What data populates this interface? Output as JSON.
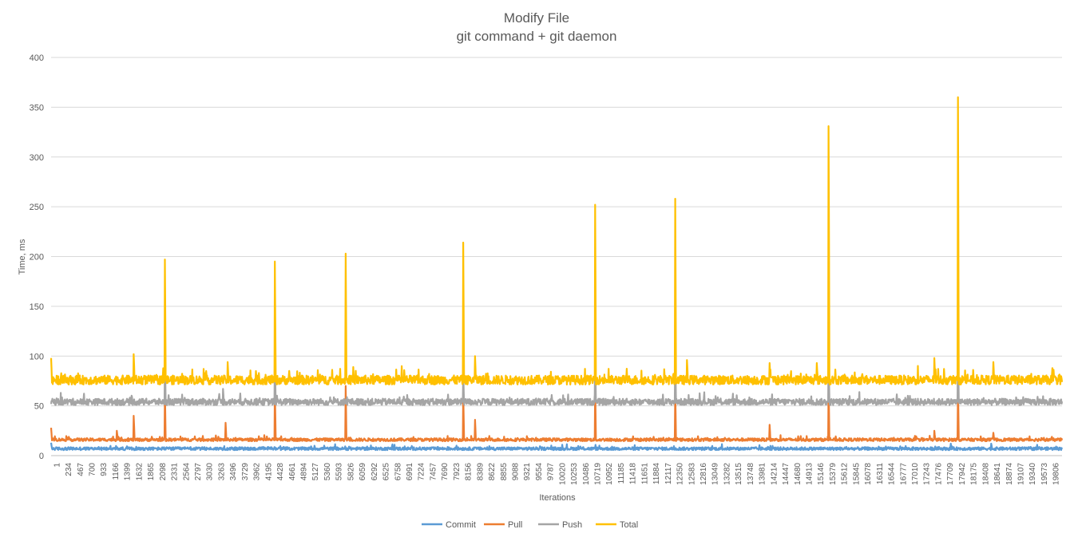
{
  "chart_data": {
    "type": "line",
    "title": "Modify File",
    "subtitle": "git command + git daemon",
    "xlabel": "Iterations",
    "ylabel": "Time, ms",
    "ylim": [
      0,
      400
    ],
    "yticks": [
      0,
      50,
      100,
      150,
      200,
      250,
      300,
      350,
      400
    ],
    "grid": true,
    "legend": "bottom",
    "x_range": [
      1,
      20000
    ],
    "x_tick_labels": [
      "1",
      "234",
      "467",
      "700",
      "933",
      "1166",
      "1399",
      "1632",
      "1865",
      "2098",
      "2331",
      "2564",
      "2797",
      "3030",
      "3263",
      "3496",
      "3729",
      "3962",
      "4195",
      "4428",
      "4661",
      "4894",
      "5127",
      "5360",
      "5593",
      "5826",
      "6059",
      "6292",
      "6525",
      "6758",
      "6991",
      "7224",
      "7457",
      "7690",
      "7923",
      "8156",
      "8389",
      "8622",
      "8855",
      "9088",
      "9321",
      "9554",
      "9787",
      "10020",
      "10253",
      "10486",
      "10719",
      "10952",
      "11185",
      "11418",
      "11651",
      "11884",
      "12117",
      "12350",
      "12583",
      "12816",
      "13049",
      "13282",
      "13515",
      "13748",
      "13981",
      "14214",
      "14447",
      "14680",
      "14913",
      "15146",
      "15379",
      "15612",
      "15845",
      "16078",
      "16311",
      "16544",
      "16777",
      "17010",
      "17243",
      "17476",
      "17709",
      "17942",
      "18175",
      "18408",
      "18641",
      "18874",
      "19107",
      "19340",
      "19573",
      "19806"
    ],
    "series": [
      {
        "name": "Commit",
        "color": "#5B9BD5",
        "baseline": 7,
        "spikes": [
          [
            1,
            13
          ],
          [
            5400,
            10
          ],
          [
            17800,
            12
          ],
          [
            18600,
            12
          ]
        ]
      },
      {
        "name": "Pull",
        "color": "#ED7D31",
        "baseline": 16,
        "spikes": [
          [
            1,
            28
          ],
          [
            1300,
            25
          ],
          [
            1632,
            40
          ],
          [
            2250,
            65
          ],
          [
            3450,
            33
          ],
          [
            4430,
            70
          ],
          [
            5826,
            70
          ],
          [
            8156,
            65
          ],
          [
            8389,
            36
          ],
          [
            10760,
            70
          ],
          [
            12350,
            65
          ],
          [
            14214,
            31
          ],
          [
            15379,
            70
          ],
          [
            17476,
            25
          ],
          [
            17942,
            70
          ],
          [
            18641,
            23
          ]
        ]
      },
      {
        "name": "Push",
        "color": "#A5A5A5",
        "baseline": 54,
        "spikes": [
          [
            2250,
            100
          ],
          [
            3400,
            67
          ],
          [
            4430,
            100
          ],
          [
            8156,
            82
          ],
          [
            10760,
            104
          ],
          [
            12350,
            100
          ],
          [
            15379,
            96
          ],
          [
            17942,
            115
          ]
        ]
      },
      {
        "name": "Total",
        "color": "#FFC000",
        "baseline": 76,
        "spikes": [
          [
            1,
            98
          ],
          [
            1632,
            102
          ],
          [
            2250,
            197
          ],
          [
            3496,
            94
          ],
          [
            4430,
            195
          ],
          [
            5826,
            203
          ],
          [
            8156,
            214
          ],
          [
            8389,
            100
          ],
          [
            10760,
            252
          ],
          [
            12350,
            258
          ],
          [
            12583,
            96
          ],
          [
            14214,
            93
          ],
          [
            15146,
            93
          ],
          [
            15379,
            331
          ],
          [
            17476,
            98
          ],
          [
            17942,
            360
          ],
          [
            18641,
            94
          ]
        ]
      }
    ]
  }
}
